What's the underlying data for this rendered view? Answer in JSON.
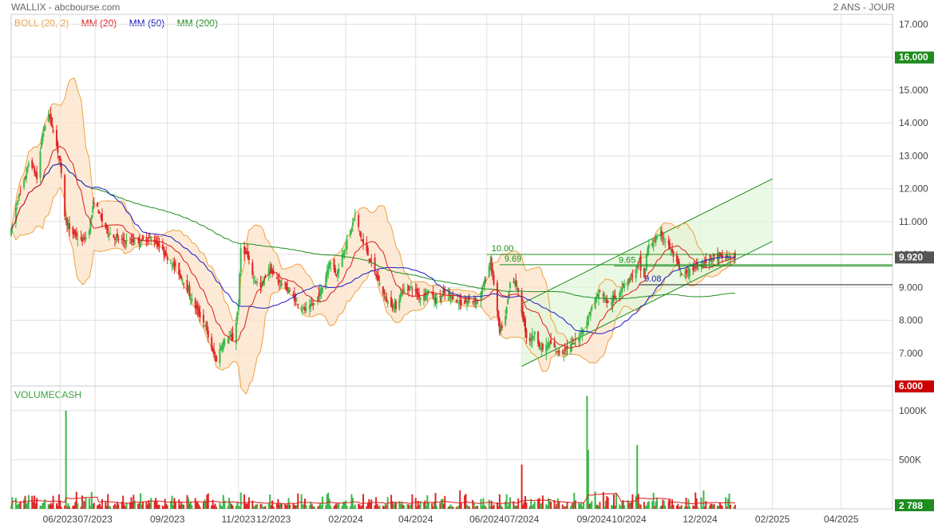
{
  "header": {
    "left": "WALLIX - abcbourse.com",
    "right": "2 ANS - JOUR"
  },
  "legend": [
    {
      "label": "BOLL (20, 2)",
      "color": "#f0a040"
    },
    {
      "label": "MM (20)",
      "color": "#e01818"
    },
    {
      "label": "MM (50)",
      "color": "#1a1ac8"
    },
    {
      "label": "MM (200)",
      "color": "#1e8c1e"
    }
  ],
  "colors": {
    "up": "#3cb84a",
    "down": "#e02828",
    "boll_fill": "#fbe3c8",
    "boll_line": "#f0a040",
    "channel_fill": "#dff7d8",
    "channel_line": "#1e8c1e",
    "grid": "#e0e0e0",
    "price_tag": "#555555",
    "tag_green": "#1e8c1e",
    "tag_red": "#cc0000"
  },
  "chart_data": {
    "type": "candlestick",
    "price_axis": {
      "ticks": [
        "17.000",
        "15.000",
        "14.000",
        "13.000",
        "12.000",
        "11.000",
        "10.000",
        "9.000",
        "8.000",
        "7.000"
      ],
      "tick_values": [
        17,
        15,
        14,
        13,
        12,
        11,
        10,
        9,
        8,
        7
      ],
      "range": [
        6,
        17.3
      ],
      "highlight_high": {
        "label": "16.000",
        "value": 16
      },
      "highlight_low": {
        "label": "6.000",
        "value": 6
      },
      "last_price": {
        "label": "9.920",
        "value": 9.92
      }
    },
    "volume_axis": {
      "label": "VOLUMECASH",
      "ticks": [
        "1000K",
        "500K"
      ],
      "tick_values": [
        1000000,
        500000
      ],
      "range": [
        0,
        1250000
      ],
      "last_volume": {
        "label": "2 788",
        "value": 2788
      }
    },
    "x_axis": {
      "labels": [
        "06/2023",
        "07/2023",
        "09/2023",
        "11/2023",
        "12/2023",
        "02/2024",
        "04/2024",
        "06/2024",
        "07/2024",
        "09/2024",
        "10/2024",
        "12/2024",
        "02/2025",
        "04/2025"
      ],
      "dates": [
        "2023-06-01",
        "2023-07-01",
        "2023-09-01",
        "2023-11-01",
        "2023-12-01",
        "2024-02-01",
        "2024-04-01",
        "2024-06-01",
        "2024-07-01",
        "2024-09-01",
        "2024-10-01",
        "2024-12-01",
        "2025-02-01",
        "2025-04-01"
      ],
      "start": "2023-04-20",
      "end": "2025-05-15"
    },
    "close_path": [
      [
        "2023-04-20",
        10.7
      ],
      [
        "2023-04-25",
        11.6
      ],
      [
        "2023-05-01",
        12.2
      ],
      [
        "2023-05-06",
        12.9
      ],
      [
        "2023-05-12",
        12.3
      ],
      [
        "2023-05-17",
        13.7
      ],
      [
        "2023-05-22",
        14.3
      ],
      [
        "2023-05-26",
        13.8
      ],
      [
        "2023-06-01",
        12.8
      ],
      [
        "2023-06-05",
        11.2
      ],
      [
        "2023-06-09",
        10.7
      ],
      [
        "2023-06-14",
        10.6
      ],
      [
        "2023-06-19",
        10.4
      ],
      [
        "2023-06-25",
        10.6
      ],
      [
        "2023-06-30",
        11.6
      ],
      [
        "2023-07-03",
        11.4
      ],
      [
        "2023-07-07",
        11.0
      ],
      [
        "2023-07-12",
        10.7
      ],
      [
        "2023-07-18",
        10.5
      ],
      [
        "2023-07-25",
        10.4
      ],
      [
        "2023-08-02",
        10.4
      ],
      [
        "2023-08-10",
        10.4
      ],
      [
        "2023-08-18",
        10.5
      ],
      [
        "2023-08-24",
        10.3
      ],
      [
        "2023-09-01",
        9.9
      ],
      [
        "2023-09-08",
        9.6
      ],
      [
        "2023-09-15",
        9.2
      ],
      [
        "2023-09-22",
        8.6
      ],
      [
        "2023-09-28",
        8.2
      ],
      [
        "2023-10-04",
        7.8
      ],
      [
        "2023-10-08",
        7.2
      ],
      [
        "2023-10-13",
        6.8
      ],
      [
        "2023-10-18",
        7.3
      ],
      [
        "2023-10-24",
        7.5
      ],
      [
        "2023-10-28",
        7.4
      ],
      [
        "2023-11-01",
        8.5
      ],
      [
        "2023-11-03",
        10.2
      ],
      [
        "2023-11-08",
        10.0
      ],
      [
        "2023-11-14",
        9.3
      ],
      [
        "2023-11-20",
        9.0
      ],
      [
        "2023-11-27",
        9.6
      ],
      [
        "2023-12-02",
        9.3
      ],
      [
        "2023-12-09",
        9.1
      ],
      [
        "2023-12-14",
        8.9
      ],
      [
        "2023-12-20",
        8.6
      ],
      [
        "2023-12-28",
        8.3
      ],
      [
        "2024-01-05",
        8.5
      ],
      [
        "2024-01-12",
        9.0
      ],
      [
        "2024-01-18",
        9.8
      ],
      [
        "2024-01-24",
        9.4
      ],
      [
        "2024-01-30",
        10.1
      ],
      [
        "2024-02-05",
        10.7
      ],
      [
        "2024-02-09",
        11.2
      ],
      [
        "2024-02-15",
        10.4
      ],
      [
        "2024-02-21",
        9.9
      ],
      [
        "2024-02-28",
        9.3
      ],
      [
        "2024-03-07",
        8.6
      ],
      [
        "2024-03-15",
        8.4
      ],
      [
        "2024-03-20",
        8.9
      ],
      [
        "2024-03-28",
        9.0
      ],
      [
        "2024-04-05",
        8.7
      ],
      [
        "2024-04-12",
        8.9
      ],
      [
        "2024-04-18",
        8.6
      ],
      [
        "2024-04-25",
        8.8
      ],
      [
        "2024-05-03",
        8.7
      ],
      [
        "2024-05-10",
        8.5
      ],
      [
        "2024-05-17",
        8.6
      ],
      [
        "2024-05-25",
        8.6
      ],
      [
        "2024-06-01",
        9.4
      ],
      [
        "2024-06-04",
        9.8
      ],
      [
        "2024-06-08",
        8.9
      ],
      [
        "2024-06-12",
        7.6
      ],
      [
        "2024-06-17",
        8.1
      ],
      [
        "2024-06-22",
        9.4
      ],
      [
        "2024-06-27",
        9.0
      ],
      [
        "2024-07-03",
        7.9
      ],
      [
        "2024-07-06",
        7.3
      ],
      [
        "2024-07-12",
        7.6
      ],
      [
        "2024-07-18",
        7.1
      ],
      [
        "2024-07-25",
        7.3
      ],
      [
        "2024-08-02",
        7.0
      ],
      [
        "2024-08-10",
        7.2
      ],
      [
        "2024-08-18",
        7.4
      ],
      [
        "2024-08-26",
        8.0
      ],
      [
        "2024-09-01",
        8.6
      ],
      [
        "2024-09-07",
        8.9
      ],
      [
        "2024-09-13",
        8.5
      ],
      [
        "2024-09-20",
        8.7
      ],
      [
        "2024-09-26",
        9.1
      ],
      [
        "2024-10-02",
        9.3
      ],
      [
        "2024-10-07",
        9.5
      ],
      [
        "2024-10-10",
        9.8
      ],
      [
        "2024-10-13",
        9.0
      ],
      [
        "2024-10-17",
        10.2
      ],
      [
        "2024-10-22",
        10.4
      ],
      [
        "2024-10-29",
        10.6
      ],
      [
        "2024-11-05",
        10.2
      ],
      [
        "2024-11-10",
        9.8
      ],
      [
        "2024-11-16",
        9.3
      ],
      [
        "2024-11-22",
        9.5
      ],
      [
        "2024-11-30",
        9.7
      ],
      [
        "2024-12-06",
        9.8
      ],
      [
        "2024-12-12",
        9.9
      ],
      [
        "2024-12-20",
        9.9
      ],
      [
        "2024-12-26",
        9.9
      ],
      [
        "2024-12-31",
        9.92
      ]
    ],
    "annotations": [
      {
        "label": "10.00",
        "date": "2024-06-01",
        "value": 10.0
      },
      {
        "label": "9.69",
        "date": "2024-06-12",
        "value": 9.69
      },
      {
        "label": "9.65",
        "date": "2024-09-18",
        "value": 9.65
      },
      {
        "label": "9.08",
        "date": "2024-10-10",
        "value": 9.08
      }
    ],
    "horizontal_lines": [
      {
        "from": "2024-06-01",
        "value": 10.0
      },
      {
        "from": "2024-06-12",
        "value": 9.69
      },
      {
        "from": "2024-09-18",
        "value": 9.65
      },
      {
        "from": "2024-10-10",
        "value": 9.08
      }
    ],
    "channel": {
      "lower": [
        [
          "2024-07-01",
          6.6
        ],
        [
          "2025-02-01",
          10.4
        ]
      ],
      "upper": [
        [
          "2024-07-01",
          8.5
        ],
        [
          "2025-02-01",
          12.3
        ]
      ]
    }
  }
}
